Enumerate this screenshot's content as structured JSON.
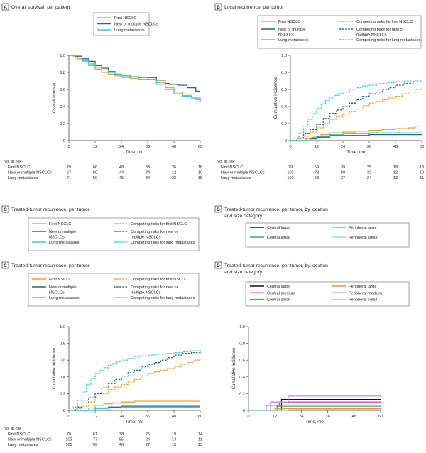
{
  "colors": {
    "first": "#f0a030",
    "multi": "#2a6a6a",
    "lung": "#3cc8dc",
    "central_large": "#111111",
    "central_medium": "#e040d0",
    "central_small": "#3aaa6a",
    "peripheral_large": "#f09040",
    "peripheral_medium": "#b890e0",
    "peripheral_small": "#8ae0f0"
  },
  "panels": [
    {
      "letter": "A",
      "title": [
        "Overall survival, per patient"
      ],
      "ylabel": "Overall survival",
      "xlabel": "Time, mo",
      "legend_labels": [
        "First NSCLC",
        "New or multiple NSCLCs",
        "Lung metastases"
      ],
      "risk": {
        "header": "No. at risk",
        "rows": [
          {
            "label": "First NSCLC",
            "values": [
              "79",
              "66",
              "48",
              "33",
              "26",
              "18"
            ]
          },
          {
            "label": "New or multiple NSCLCs",
            "values": [
              "67",
              "60",
              "44",
              "24",
              "12",
              "10"
            ]
          },
          {
            "label": "Lung metastases",
            "values": [
              "71",
              "59",
              "45",
              "34",
              "22",
              "15"
            ]
          }
        ]
      }
    },
    {
      "letter": "B",
      "title": [
        "Local recurrence, per tumor"
      ],
      "ylabel": "Cumulative incidence",
      "xlabel": "Time, mo",
      "legend_labels": [
        "First NSCLC",
        "New or multiple NSCLCs",
        "Lung metastases",
        "Competing risks for first NSCLC",
        "Competing risks for new or multiple NSCLCs",
        "Competing risks for lung metastases"
      ],
      "risk": {
        "header": "No. at risk",
        "rows": [
          {
            "label": "First NSCLC",
            "values": [
              "79",
              "59",
              "39",
              "25",
              "18",
              "13"
            ]
          },
          {
            "label": "New or multiple NSCLCs",
            "values": [
              "103",
              "78",
              "50",
              "22",
              "12",
              "10"
            ]
          },
          {
            "label": "Lung metastases",
            "values": [
              "103",
              "53",
              "37",
              "24",
              "13",
              "11"
            ]
          }
        ]
      }
    },
    {
      "letter": "C",
      "title": [
        "Treated-tumor recurrence, per tumor"
      ],
      "legend_labels": [
        "First NSCLC",
        "New or multiple NSCLCs",
        "Lung metastases",
        "Competing risks for first NSCLC",
        "Competing risks for new or multiple NSCLCs",
        "Competing risks for lung metastases"
      ]
    },
    {
      "letter": "D",
      "title": [
        "Treated-tumor recurrence, per tumor, by location",
        "and size category"
      ],
      "legend_labels": [
        "Central large",
        "Central small",
        "Peripheral large",
        "Peripheral small"
      ]
    },
    {
      "letter": "C",
      "title": [
        "Treated-tumor recurrence, per tumor"
      ],
      "ylabel": "Cumulative incidence",
      "xlabel": "Time, mo",
      "legend_labels": [
        "First NSCLC",
        "New or multiple NSCLCs",
        "Lung metastases",
        "Competing risks for first NSCLC",
        "Competing risks for new or multiple NSCLCs",
        "Competing risks for lung metastases"
      ],
      "risk": {
        "header": "No. at risk",
        "rows": [
          {
            "label": "First NSCLC",
            "values": [
              "79",
              "61",
              "38",
              "25",
              "19",
              "14"
            ]
          },
          {
            "label": "New or multiple NSCLCs",
            "values": [
              "103",
              "77",
              "55",
              "24",
              "13",
              "11"
            ]
          },
          {
            "label": "Lung metastases",
            "values": [
              "103",
              "69",
              "46",
              "27",
              "15",
              "13"
            ]
          }
        ]
      }
    },
    {
      "letter": "D",
      "title": [
        "Treated-tumor recurrence, per tumor, by location",
        "and size category"
      ],
      "ylabel": "Cumulative incidence",
      "xlabel": "Time, mo",
      "legend_labels": [
        "Central large",
        "Central medium",
        "Central small",
        "Peripheral large",
        "Peripheral medium",
        "Peripheral small"
      ]
    }
  ],
  "chart_data": [
    {
      "type": "line",
      "title": "Overall survival, per patient",
      "xlabel": "Time, mo",
      "ylabel": "Overall survival",
      "xlim": [
        0,
        60
      ],
      "ylim": [
        0,
        1.0
      ],
      "xticks": [
        0,
        12,
        24,
        36,
        48,
        60
      ],
      "yticks": [
        0,
        0.2,
        0.4,
        0.6,
        0.8,
        1.0
      ],
      "series": [
        {
          "name": "First NSCLC",
          "color_key": "first",
          "dash": false,
          "x": [
            0,
            2,
            4,
            6,
            9,
            12,
            15,
            18,
            21,
            24,
            28,
            32,
            36,
            40,
            44,
            48,
            52,
            56,
            58,
            60
          ],
          "y": [
            1.0,
            0.99,
            0.96,
            0.93,
            0.88,
            0.84,
            0.8,
            0.78,
            0.76,
            0.74,
            0.73,
            0.72,
            0.72,
            0.68,
            0.62,
            0.57,
            0.53,
            0.5,
            0.48,
            0.47
          ]
        },
        {
          "name": "New or multiple NSCLCs",
          "color_key": "multi",
          "dash": false,
          "x": [
            0,
            3,
            6,
            9,
            12,
            15,
            18,
            21,
            24,
            28,
            32,
            36,
            40,
            44,
            46,
            50,
            54,
            58,
            60
          ],
          "y": [
            1.0,
            0.99,
            0.96,
            0.93,
            0.88,
            0.85,
            0.81,
            0.78,
            0.76,
            0.75,
            0.74,
            0.74,
            0.71,
            0.67,
            0.66,
            0.65,
            0.62,
            0.58,
            0.58
          ]
        },
        {
          "name": "Lung metastases",
          "color_key": "lung",
          "dash": false,
          "x": [
            0,
            3,
            6,
            9,
            12,
            15,
            18,
            21,
            24,
            28,
            32,
            36,
            40,
            44,
            48,
            52,
            56,
            60
          ],
          "y": [
            1.0,
            0.97,
            0.94,
            0.9,
            0.86,
            0.83,
            0.8,
            0.78,
            0.76,
            0.75,
            0.74,
            0.72,
            0.66,
            0.6,
            0.55,
            0.52,
            0.5,
            0.46
          ]
        }
      ]
    },
    {
      "type": "line",
      "title": "Local recurrence, per tumor",
      "xlabel": "Time, mo",
      "ylabel": "Cumulative incidence",
      "xlim": [
        0,
        60
      ],
      "ylim": [
        0,
        1.0
      ],
      "xticks": [
        0,
        12,
        24,
        36,
        48,
        60
      ],
      "yticks": [
        0,
        0.2,
        0.4,
        0.6,
        0.8,
        1.0
      ],
      "series": [
        {
          "name": "First NSCLC",
          "color_key": "first",
          "dash": false,
          "x": [
            0,
            4,
            7,
            10,
            14,
            18,
            24,
            30,
            36,
            42,
            48,
            54,
            57,
            60
          ],
          "y": [
            0,
            0,
            0.02,
            0.04,
            0.07,
            0.09,
            0.1,
            0.11,
            0.12,
            0.13,
            0.14,
            0.15,
            0.17,
            0.17
          ]
        },
        {
          "name": "New or multiple NSCLCs",
          "color_key": "multi",
          "dash": false,
          "x": [
            0,
            6,
            9,
            12,
            18,
            24,
            36,
            48,
            60
          ],
          "y": [
            0,
            0,
            0.02,
            0.04,
            0.06,
            0.06,
            0.07,
            0.07,
            0.07
          ]
        },
        {
          "name": "Lung metastases",
          "color_key": "lung",
          "dash": false,
          "x": [
            0,
            6,
            9,
            12,
            18,
            24,
            36,
            48,
            60
          ],
          "y": [
            0,
            0,
            0.03,
            0.05,
            0.07,
            0.08,
            0.09,
            0.09,
            0.09
          ]
        },
        {
          "name": "Competing risks for first NSCLC",
          "color_key": "first",
          "dash": true,
          "x": [
            0,
            3,
            6,
            9,
            12,
            15,
            18,
            21,
            24,
            27,
            30,
            33,
            36,
            39,
            42,
            45,
            48,
            51,
            54,
            57,
            60
          ],
          "y": [
            0,
            0.02,
            0.05,
            0.1,
            0.15,
            0.2,
            0.25,
            0.28,
            0.31,
            0.34,
            0.37,
            0.41,
            0.44,
            0.46,
            0.48,
            0.5,
            0.52,
            0.55,
            0.57,
            0.6,
            0.62
          ]
        },
        {
          "name": "Competing risks for new or multiple NSCLCs",
          "color_key": "multi",
          "dash": true,
          "x": [
            0,
            3,
            6,
            9,
            12,
            15,
            18,
            21,
            24,
            27,
            30,
            33,
            36,
            39,
            42,
            45,
            48,
            52,
            56,
            60
          ],
          "y": [
            0,
            0.03,
            0.08,
            0.13,
            0.19,
            0.26,
            0.32,
            0.36,
            0.4,
            0.44,
            0.48,
            0.52,
            0.55,
            0.57,
            0.6,
            0.62,
            0.65,
            0.67,
            0.69,
            0.7
          ]
        },
        {
          "name": "Competing risks for lung metastases",
          "color_key": "lung",
          "dash": true,
          "x": [
            0,
            2,
            4,
            6,
            8,
            10,
            12,
            14,
            16,
            18,
            20,
            22,
            24,
            27,
            30,
            33,
            36,
            40,
            44,
            48,
            52,
            56,
            60
          ],
          "y": [
            0,
            0.03,
            0.09,
            0.17,
            0.25,
            0.32,
            0.38,
            0.43,
            0.47,
            0.5,
            0.53,
            0.55,
            0.57,
            0.6,
            0.62,
            0.64,
            0.65,
            0.67,
            0.68,
            0.69,
            0.7,
            0.71,
            0.72
          ]
        }
      ]
    },
    {
      "type": "line",
      "title": "Treated-tumor recurrence, per tumor",
      "xlabel": "Time, mo",
      "ylabel": "Cumulative incidence",
      "xlim": [
        0,
        60
      ],
      "ylim": [
        0,
        1.0
      ],
      "xticks": [
        0,
        12,
        24,
        36,
        48,
        60
      ],
      "yticks": [
        0,
        0.2,
        0.4,
        0.6,
        0.8,
        1.0
      ],
      "series": [
        {
          "name": "First NSCLC",
          "color_key": "first",
          "dash": false,
          "x": [
            0,
            6,
            9,
            12,
            16,
            20,
            24,
            30,
            36,
            48,
            60
          ],
          "y": [
            0,
            0,
            0.03,
            0.06,
            0.08,
            0.09,
            0.1,
            0.11,
            0.11,
            0.11,
            0.11
          ]
        },
        {
          "name": "New or multiple NSCLCs",
          "color_key": "multi",
          "dash": false,
          "x": [
            0,
            8,
            12,
            18,
            24,
            36,
            48,
            60
          ],
          "y": [
            0,
            0,
            0.03,
            0.04,
            0.05,
            0.05,
            0.05,
            0.05
          ]
        },
        {
          "name": "Lung metastases",
          "color_key": "lung",
          "dash": false,
          "x": [
            0,
            8,
            12,
            18,
            24,
            36,
            48,
            60
          ],
          "y": [
            0,
            0,
            0.02,
            0.03,
            0.04,
            0.04,
            0.04,
            0.04
          ]
        },
        {
          "name": "Competing risks for first NSCLC",
          "color_key": "first",
          "dash": true,
          "x": [
            0,
            3,
            6,
            9,
            12,
            15,
            18,
            21,
            24,
            27,
            30,
            33,
            36,
            39,
            42,
            45,
            48,
            51,
            54,
            57,
            60
          ],
          "y": [
            0,
            0.02,
            0.05,
            0.1,
            0.15,
            0.2,
            0.25,
            0.28,
            0.31,
            0.34,
            0.37,
            0.41,
            0.44,
            0.46,
            0.48,
            0.5,
            0.52,
            0.55,
            0.57,
            0.6,
            0.62
          ]
        },
        {
          "name": "Competing risks for new or multiple NSCLCs",
          "color_key": "multi",
          "dash": true,
          "x": [
            0,
            3,
            6,
            9,
            12,
            15,
            18,
            21,
            24,
            27,
            30,
            33,
            36,
            39,
            42,
            45,
            48,
            52,
            56,
            60
          ],
          "y": [
            0,
            0.04,
            0.09,
            0.15,
            0.2,
            0.27,
            0.32,
            0.37,
            0.41,
            0.45,
            0.48,
            0.52,
            0.55,
            0.57,
            0.6,
            0.63,
            0.66,
            0.68,
            0.69,
            0.7
          ]
        },
        {
          "name": "Competing risks for lung metastases",
          "color_key": "lung",
          "dash": true,
          "x": [
            0,
            2,
            4,
            6,
            8,
            10,
            12,
            14,
            16,
            18,
            20,
            22,
            24,
            27,
            30,
            33,
            36,
            40,
            44,
            48,
            52,
            56,
            60
          ],
          "y": [
            0,
            0.04,
            0.12,
            0.22,
            0.31,
            0.38,
            0.44,
            0.48,
            0.51,
            0.54,
            0.56,
            0.58,
            0.6,
            0.62,
            0.64,
            0.65,
            0.66,
            0.67,
            0.68,
            0.69,
            0.7,
            0.71,
            0.72
          ]
        }
      ]
    },
    {
      "type": "line",
      "title": "Treated-tumor recurrence, per tumor, by location and size category",
      "xlabel": "Time, mo",
      "ylabel": "Cumulative incidence",
      "xlim": [
        0,
        60
      ],
      "ylim": [
        0,
        1.0
      ],
      "xticks": [
        0,
        12,
        24,
        36,
        48,
        60
      ],
      "yticks": [
        0,
        0.2,
        0.4,
        0.6,
        0.8,
        1.0
      ],
      "series": [
        {
          "name": "Central large",
          "color_key": "central_large",
          "dash": false,
          "x": [
            0,
            15,
            15,
            60
          ],
          "y": [
            0,
            0,
            0.13,
            0.13
          ]
        },
        {
          "name": "Central medium",
          "color_key": "central_medium",
          "dash": false,
          "x": [
            0,
            8,
            8,
            14,
            14,
            60
          ],
          "y": [
            0,
            0,
            0.06,
            0.06,
            0.1,
            0.1
          ]
        },
        {
          "name": "Central small",
          "color_key": "central_small",
          "dash": false,
          "x": [
            0,
            13,
            13,
            60
          ],
          "y": [
            0,
            0,
            0.05,
            0.05
          ]
        },
        {
          "name": "Peripheral large",
          "color_key": "peripheral_large",
          "dash": false,
          "x": [
            0,
            12,
            12,
            60
          ],
          "y": [
            0,
            0,
            0.02,
            0.02
          ]
        },
        {
          "name": "Peripheral medium",
          "color_key": "peripheral_medium",
          "dash": false,
          "x": [
            0,
            10,
            10,
            18,
            18,
            60
          ],
          "y": [
            0,
            0,
            0.1,
            0.1,
            0.17,
            0.17
          ]
        },
        {
          "name": "Peripheral small",
          "color_key": "peripheral_small",
          "dash": false,
          "x": [
            0,
            18,
            18,
            60
          ],
          "y": [
            0,
            0,
            0.01,
            0.01
          ]
        }
      ]
    }
  ]
}
